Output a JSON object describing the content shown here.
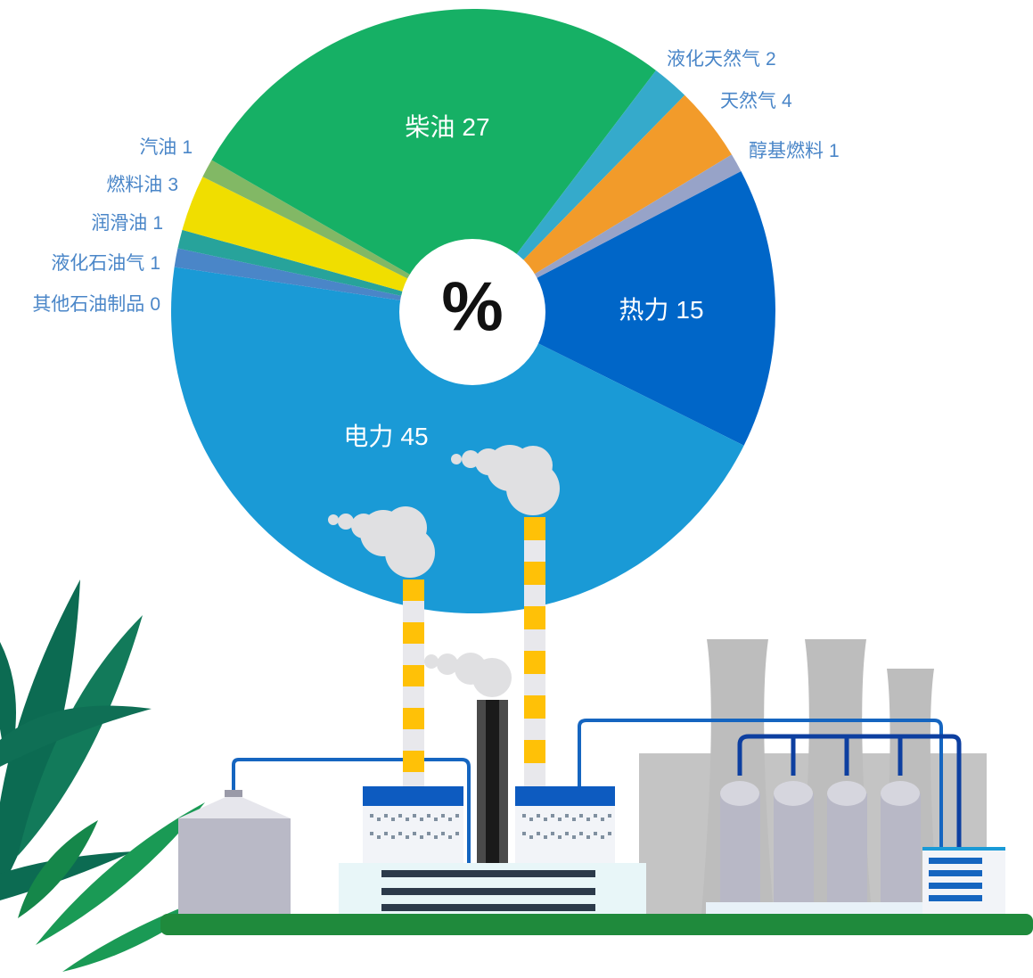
{
  "chart_data": {
    "type": "pie",
    "center_label": "%",
    "categories": [
      "热力",
      "电力",
      "其他石油制品",
      "液化石油气",
      "润滑油",
      "燃料油",
      "汽油",
      "柴油",
      "液化天然气",
      "天然气",
      "醇基燃料"
    ],
    "values": [
      15,
      45,
      0,
      1,
      1,
      3,
      1,
      27,
      2,
      4,
      1
    ],
    "colors": [
      "#0066c8",
      "#1a9ad6",
      "#4a86c8",
      "#4a86c8",
      "#27a39b",
      "#f0de00",
      "#82b865",
      "#16b065",
      "#35aacb",
      "#f29b2a",
      "#97a3c8"
    ]
  }
}
